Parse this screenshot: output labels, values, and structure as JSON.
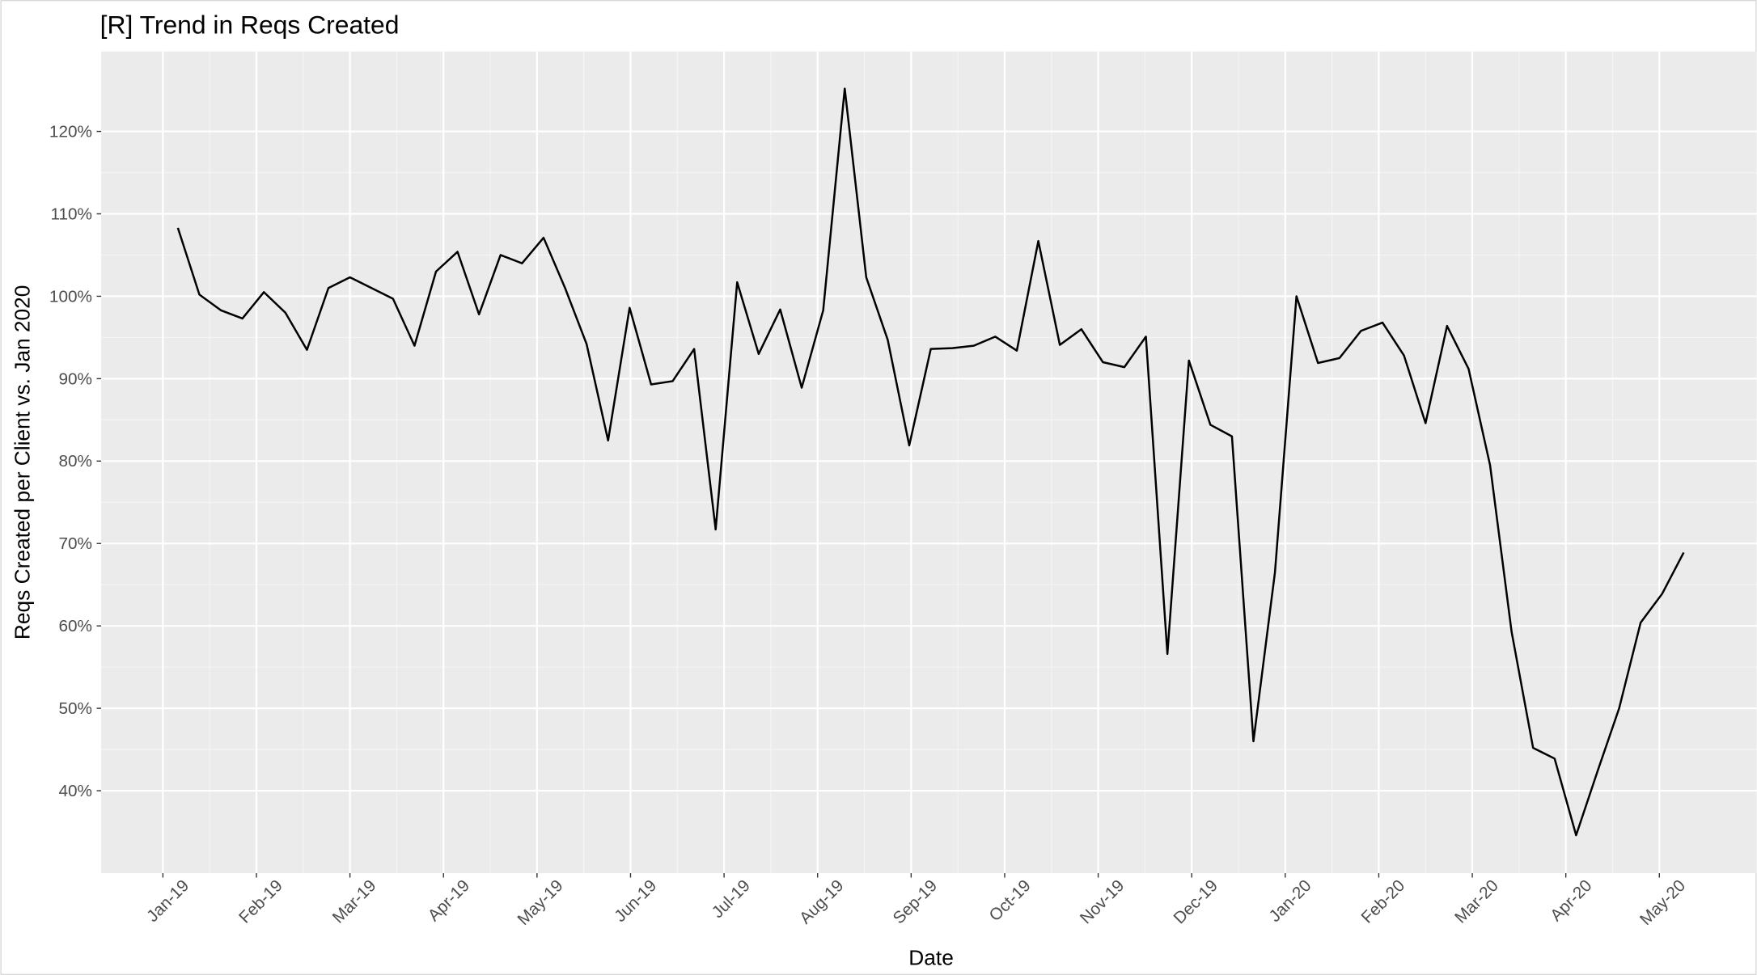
{
  "chart_data": {
    "type": "line",
    "title": "[R] Trend in Reqs Created",
    "x_label": "Date",
    "y_label": "Reqs Created per Client vs. Jan 2020",
    "grid": true,
    "color": "#000000",
    "xlim": [
      -0.66,
      17.04
    ],
    "xticks": [
      {
        "value": 0,
        "label": "Jan-19"
      },
      {
        "value": 1,
        "label": "Feb-19"
      },
      {
        "value": 2,
        "label": "Mar-19"
      },
      {
        "value": 3,
        "label": "Apr-19"
      },
      {
        "value": 4,
        "label": "May-19"
      },
      {
        "value": 5,
        "label": "Jun-19"
      },
      {
        "value": 6,
        "label": "Jul-19"
      },
      {
        "value": 7,
        "label": "Aug-19"
      },
      {
        "value": 8,
        "label": "Sep-19"
      },
      {
        "value": 9,
        "label": "Oct-19"
      },
      {
        "value": 10,
        "label": "Nov-19"
      },
      {
        "value": 11,
        "label": "Dec-19"
      },
      {
        "value": 12,
        "label": "Jan-20"
      },
      {
        "value": 13,
        "label": "Feb-20"
      },
      {
        "value": 14,
        "label": "Mar-20"
      },
      {
        "value": 15,
        "label": "Apr-20"
      },
      {
        "value": 16,
        "label": "May-20"
      }
    ],
    "ylim": [
      30,
      129.7
    ],
    "yticks": [
      {
        "value": 40,
        "label": "40%"
      },
      {
        "value": 50,
        "label": "50%"
      },
      {
        "value": 60,
        "label": "60%"
      },
      {
        "value": 70,
        "label": "70%"
      },
      {
        "value": 80,
        "label": "80%"
      },
      {
        "value": 90,
        "label": "90%"
      },
      {
        "value": 100,
        "label": "100%"
      },
      {
        "value": 110,
        "label": "110%"
      },
      {
        "value": 120,
        "label": "120%"
      }
    ],
    "x": [
      0.16,
      0.39,
      0.62,
      0.85,
      1.08,
      1.31,
      1.54,
      1.77,
      2.0,
      2.23,
      2.46,
      2.69,
      2.92,
      3.15,
      3.38,
      3.61,
      3.84,
      4.07,
      4.3,
      4.53,
      4.76,
      4.99,
      5.22,
      5.45,
      5.68,
      5.91,
      6.14,
      6.37,
      6.6,
      6.83,
      7.06,
      7.29,
      7.52,
      7.75,
      7.98,
      8.21,
      8.44,
      8.67,
      8.9,
      9.13,
      9.36,
      9.59,
      9.82,
      10.05,
      10.28,
      10.51,
      10.74,
      10.97,
      11.2,
      11.43,
      11.66,
      11.89,
      12.12,
      12.35,
      12.58,
      12.81,
      13.04,
      13.27,
      13.5,
      13.73,
      13.96,
      14.19,
      14.42,
      14.65,
      14.88,
      15.11,
      15.34,
      15.57,
      15.8,
      16.03,
      16.26
    ],
    "values": [
      108.3,
      100.2,
      98.3,
      97.3,
      100.5,
      98,
      93.5,
      101,
      102.3,
      101,
      99.7,
      94,
      103,
      105.4,
      97.8,
      105,
      104,
      107.1,
      101,
      94.2,
      82.5,
      98.6,
      89.3,
      89.7,
      93.6,
      71.7,
      101.7,
      93,
      98.4,
      88.9,
      98.3,
      125.2,
      102.3,
      94.7,
      81.9,
      93.6,
      93.7,
      94,
      95.1,
      93.4,
      106.7,
      94.1,
      96,
      92,
      91.4,
      95.1,
      56.6,
      92.2,
      84.4,
      83,
      46,
      66.5,
      100,
      91.9,
      92.5,
      95.8,
      96.8,
      92.8,
      84.6,
      96.4,
      91.2,
      79.5,
      59.3,
      45.2,
      43.9,
      34.6,
      42.4,
      50,
      60.4,
      63.9,
      68.9
    ]
  }
}
